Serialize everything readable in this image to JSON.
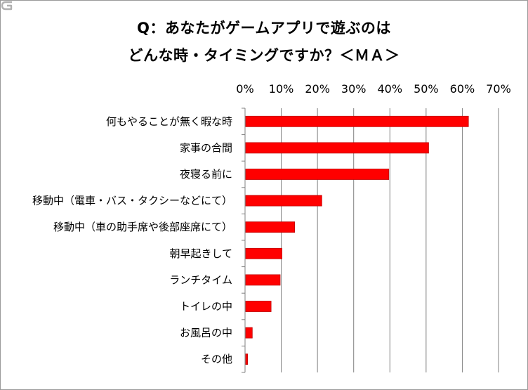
{
  "chart_data": {
    "type": "bar",
    "orientation": "horizontal",
    "title_line1": "Q：あなたがゲームアプリで遊ぶのは",
    "title_line2": "どんな時・タイミングですか？＜ＭＡ＞",
    "categories": [
      "何もやることが無く暇な時",
      "家事の合間",
      "夜寝る前に",
      "移動中（電車・バス・タクシーなどにて）",
      "移動中（車の助手席や後部座席にて）",
      "朝早起きして",
      "ランチタイム",
      "トイレの中",
      "お風呂の中",
      "その他"
    ],
    "values": [
      61.5,
      50.5,
      39.5,
      21,
      13.5,
      10,
      9.5,
      7,
      1.8,
      0.5
    ],
    "x_ticks": [
      "0%",
      "10%",
      "20%",
      "30%",
      "40%",
      "50%",
      "60%",
      "70%"
    ],
    "xlim": [
      0,
      70
    ],
    "axis_position": "top",
    "grid": true,
    "bar_color": "#ff0000",
    "bar_edge_color": "#c00000",
    "grid_color": "#808080"
  }
}
